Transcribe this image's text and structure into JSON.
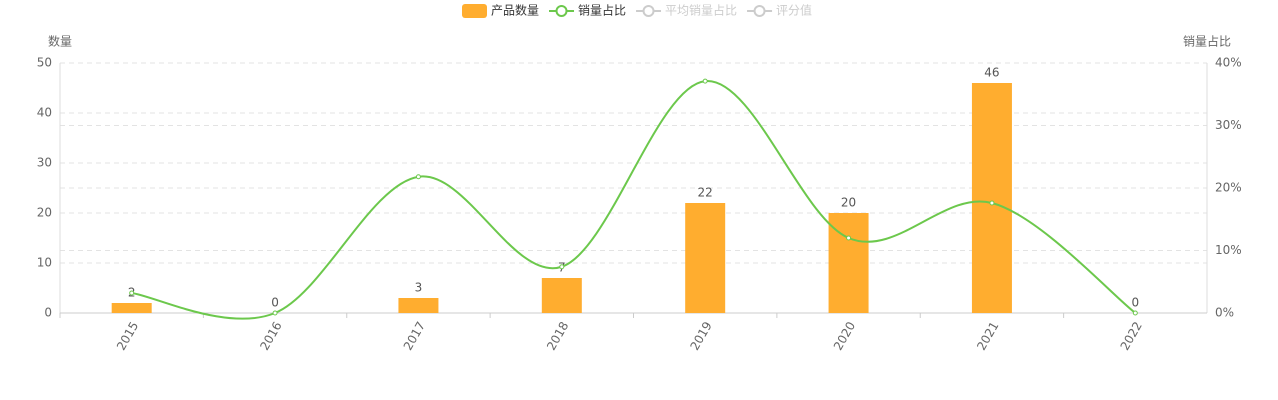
{
  "chart_data": {
    "type": "bar-line",
    "y_label": "数量",
    "y2_label": "销量占比",
    "categories": [
      "2015",
      "2016",
      "2017",
      "2018",
      "2019",
      "2020",
      "2021",
      "2022"
    ],
    "series": [
      {
        "name": "产品数量",
        "type": "bar",
        "color": "#ffad2f",
        "values": [
          2,
          0,
          3,
          7,
          22,
          20,
          46,
          0
        ]
      },
      {
        "name": "销量占比",
        "type": "line",
        "axis": "y2",
        "color": "#6cc84c",
        "smooth": true,
        "values": [
          3.2,
          0,
          21.8,
          7.4,
          37.1,
          12,
          17.6,
          0
        ]
      }
    ],
    "legend_inactive": [
      "平均销量占比",
      "评分值"
    ],
    "ylim": [
      0,
      50
    ],
    "yticks": [
      0,
      10,
      20,
      30,
      40,
      50
    ],
    "y2lim": [
      0,
      40
    ],
    "y2ticks": [
      {
        "value": 0,
        "label": "0%"
      },
      {
        "value": 10,
        "label": "10%"
      },
      {
        "value": 20,
        "label": "20%"
      },
      {
        "value": 30,
        "label": "30%"
      },
      {
        "value": 40,
        "label": "40%"
      }
    ],
    "grid": true,
    "legend": "top"
  }
}
